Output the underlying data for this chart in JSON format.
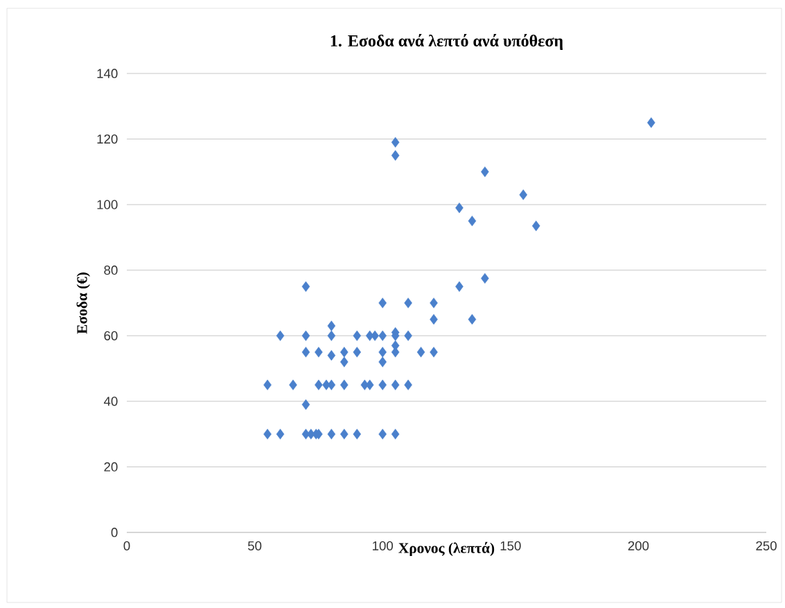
{
  "chart_data": {
    "type": "scatter",
    "title": "1. Εσοδα ανά λεπτό ανά υπόθεση",
    "xlabel": "Χρονος (λεπτά)",
    "ylabel": "Εσοδα (€)",
    "marker": "diamond",
    "grid": "y",
    "xlim": [
      0,
      250
    ],
    "xticks": [
      0,
      50,
      100,
      150,
      200,
      250
    ],
    "ylim": [
      0,
      140
    ],
    "yticks": [
      0,
      20,
      40,
      60,
      80,
      100,
      120,
      140
    ],
    "series": [
      {
        "color": "#4a80cc",
        "x": [
          55,
          55,
          60,
          60,
          65,
          70,
          70,
          70,
          70,
          70,
          72,
          74,
          75,
          75,
          75,
          78,
          80,
          80,
          80,
          80,
          80,
          85,
          85,
          85,
          85,
          90,
          90,
          90,
          93,
          95,
          95,
          97,
          100,
          100,
          100,
          100,
          100,
          100,
          105,
          105,
          105,
          105,
          105,
          105,
          105,
          105,
          110,
          110,
          110,
          115,
          120,
          120,
          120,
          130,
          130,
          135,
          135,
          140,
          140,
          155,
          160,
          205
        ],
        "values": [
          45,
          30,
          60,
          30,
          45,
          75,
          60,
          55,
          39,
          30,
          30,
          30,
          55,
          45,
          30,
          45,
          63,
          60,
          54,
          45,
          30,
          55,
          52,
          45,
          30,
          60,
          55,
          30,
          45,
          60,
          45,
          60,
          70,
          60,
          55,
          52,
          45,
          30,
          119,
          115,
          61,
          60,
          57,
          55,
          45,
          30,
          70,
          60,
          45,
          55,
          70,
          65,
          55,
          99,
          75,
          95,
          65,
          110,
          77.5,
          103,
          93.5,
          125
        ]
      }
    ]
  }
}
